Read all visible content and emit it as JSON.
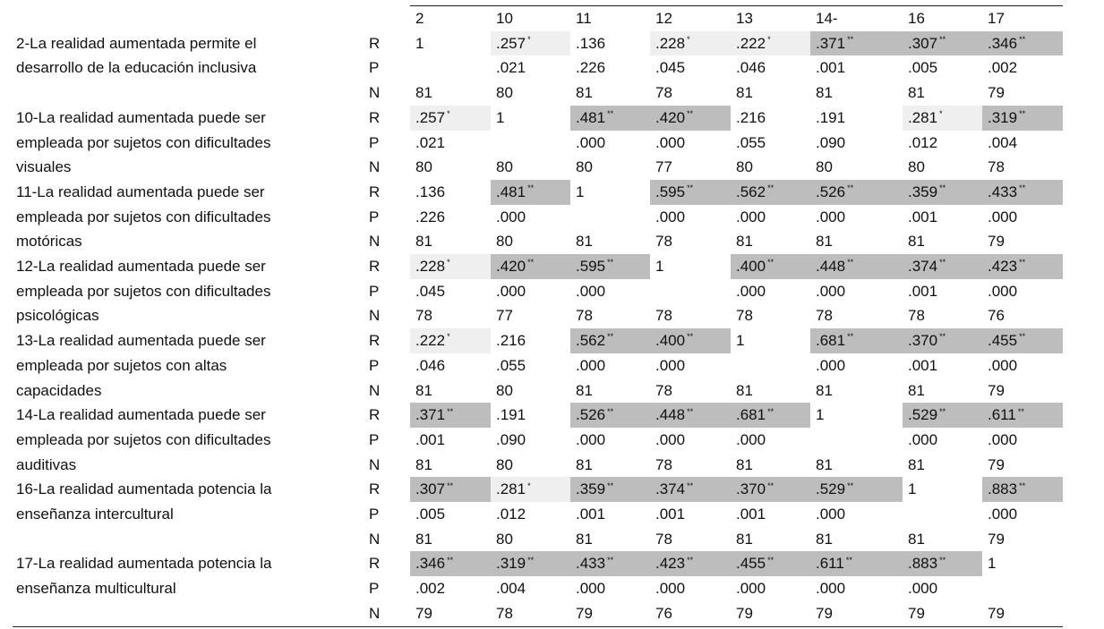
{
  "columns": [
    "2",
    "10",
    "11",
    "12",
    "13",
    "14-",
    "16",
    "17"
  ],
  "stat_labels": [
    "R",
    "P",
    "N"
  ],
  "colors": {
    "sig_strong": "#bdbdbd",
    "sig_weak": "#efefef"
  },
  "rows": [
    {
      "label": [
        "2-La realidad aumentada permite el",
        "desarrollo de la educación inclusiva",
        ""
      ],
      "R": [
        "1",
        ".257",
        ".136",
        ".228",
        ".222",
        ".371",
        ".307",
        ".346"
      ],
      "Rs": [
        "",
        "*",
        "",
        "*",
        "*",
        "**",
        "**",
        "**"
      ],
      "P": [
        "",
        ".021",
        ".226",
        ".045",
        ".046",
        ".001",
        ".005",
        ".002"
      ],
      "N": [
        "81",
        "80",
        "81",
        "78",
        "81",
        "81",
        "81",
        "79"
      ]
    },
    {
      "label": [
        "10-La realidad aumentada puede ser",
        "empleada por sujetos con dificultades",
        "visuales"
      ],
      "R": [
        ".257",
        "1",
        ".481",
        ".420",
        ".216",
        ".191",
        ".281",
        ".319"
      ],
      "Rs": [
        "*",
        "",
        "**",
        "**",
        "",
        "",
        "*",
        "**"
      ],
      "P": [
        ".021",
        "",
        ".000",
        ".000",
        ".055",
        ".090",
        ".012",
        ".004"
      ],
      "N": [
        "80",
        "80",
        "80",
        "77",
        "80",
        "80",
        "80",
        "78"
      ]
    },
    {
      "label": [
        "11-La realidad aumentada puede ser",
        "empleada por sujetos con dificultades",
        "motóricas"
      ],
      "R": [
        ".136",
        ".481",
        "1",
        ".595",
        ".562",
        ".526",
        ".359",
        ".433"
      ],
      "Rs": [
        "",
        "**",
        "",
        "**",
        "**",
        "**",
        "**",
        "**"
      ],
      "P": [
        ".226",
        ".000",
        "",
        ".000",
        ".000",
        ".000",
        ".001",
        ".000"
      ],
      "N": [
        "81",
        "80",
        "81",
        "78",
        "81",
        "81",
        "81",
        "79"
      ]
    },
    {
      "label": [
        "12-La realidad aumentada puede ser",
        "empleada por sujetos con dificultades",
        "psicológicas"
      ],
      "R": [
        ".228",
        ".420",
        ".595",
        "1",
        ".400",
        ".448",
        ".374",
        ".423"
      ],
      "Rs": [
        "*",
        "**",
        "**",
        "",
        "**",
        "**",
        "**",
        "**"
      ],
      "P": [
        ".045",
        ".000",
        ".000",
        "",
        ".000",
        ".000",
        ".001",
        ".000"
      ],
      "N": [
        "78",
        "77",
        "78",
        "78",
        "78",
        "78",
        "78",
        "76"
      ]
    },
    {
      "label": [
        "13-La realidad aumentada puede ser",
        "empleada por sujetos con altas",
        "capacidades"
      ],
      "R": [
        ".222",
        ".216",
        ".562",
        ".400",
        "1",
        ".681",
        ".370",
        ".455"
      ],
      "Rs": [
        "*",
        "",
        "**",
        "**",
        "",
        "**",
        "**",
        "**"
      ],
      "P": [
        ".046",
        ".055",
        ".000",
        ".000",
        "",
        ".000",
        ".001",
        ".000"
      ],
      "N": [
        "81",
        "80",
        "81",
        "78",
        "81",
        "81",
        "81",
        "79"
      ]
    },
    {
      "label": [
        "14-La realidad aumentada puede ser",
        "empleada por sujetos con dificultades",
        "auditivas"
      ],
      "R": [
        ".371",
        ".191",
        ".526",
        ".448",
        ".681",
        "1",
        ".529",
        ".611"
      ],
      "Rs": [
        "**",
        "",
        "**",
        "**",
        "**",
        "",
        "**",
        "**"
      ],
      "P": [
        ".001",
        ".090",
        ".000",
        ".000",
        ".000",
        "",
        ".000",
        ".000"
      ],
      "N": [
        "81",
        "80",
        "81",
        "78",
        "81",
        "81",
        "81",
        "79"
      ]
    },
    {
      "label": [
        "16-La realidad aumentada potencia la",
        "enseñanza intercultural",
        ""
      ],
      "R": [
        ".307",
        ".281",
        ".359",
        ".374",
        ".370",
        ".529",
        "1",
        ".883"
      ],
      "Rs": [
        "**",
        "*",
        "**",
        "**",
        "**",
        "**",
        "",
        "**"
      ],
      "P": [
        ".005",
        ".012",
        ".001",
        ".001",
        ".001",
        ".000",
        "",
        ".000"
      ],
      "N": [
        "81",
        "80",
        "81",
        "78",
        "81",
        "81",
        "81",
        "79"
      ]
    },
    {
      "label": [
        "17-La realidad aumentada potencia la",
        "enseñanza multicultural",
        ""
      ],
      "R": [
        ".346",
        ".319",
        ".433",
        ".423",
        ".455",
        ".611",
        ".883",
        "1"
      ],
      "Rs": [
        "**",
        "**",
        "**",
        "**",
        "**",
        "**",
        "**",
        ""
      ],
      "P": [
        ".002",
        ".004",
        ".000",
        ".000",
        ".000",
        ".000",
        ".000",
        ""
      ],
      "N": [
        "79",
        "78",
        "79",
        "76",
        "79",
        "79",
        "79",
        "79"
      ]
    }
  ]
}
